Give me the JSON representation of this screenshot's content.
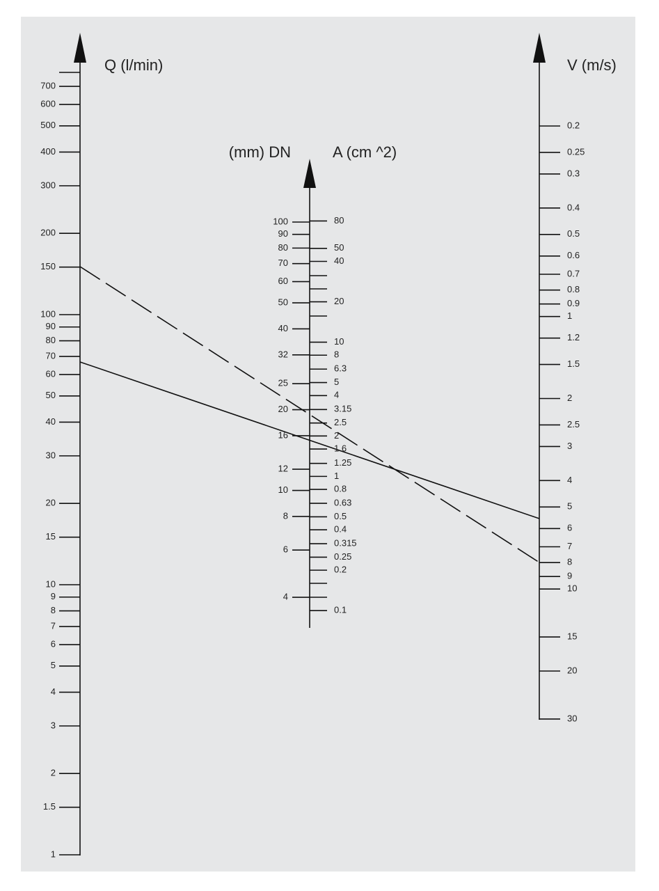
{
  "q_axis": {
    "label": "Q (l/min)",
    "ticks": [
      700,
      600,
      500,
      400,
      300,
      200,
      150,
      100,
      90,
      80,
      70,
      60,
      50,
      40,
      30,
      20,
      15,
      10,
      9,
      8,
      7,
      6,
      5,
      4,
      3,
      2,
      1.5,
      1
    ]
  },
  "dn_axis": {
    "label": "(mm) DN",
    "ticks": [
      100,
      90,
      80,
      70,
      60,
      50,
      40,
      32,
      25,
      20,
      16,
      12,
      10,
      8,
      6,
      4
    ]
  },
  "a_axis": {
    "label": "A (cm ^2)",
    "ticks": [
      80,
      50,
      40,
      20,
      10,
      8,
      6.3,
      5,
      4,
      3.15,
      2.5,
      2,
      1.6,
      1.25,
      1,
      0.8,
      0.63,
      0.5,
      0.4,
      0.315,
      0.25,
      0.2,
      0.1
    ]
  },
  "v_axis": {
    "label": "V (m/s)",
    "ticks": [
      0.2,
      0.25,
      0.3,
      0.4,
      0.5,
      0.6,
      0.7,
      0.8,
      0.9,
      1,
      1.2,
      1.5,
      2,
      2.5,
      3,
      4,
      5,
      6,
      7,
      8,
      9,
      10,
      15,
      20,
      30
    ]
  }
}
